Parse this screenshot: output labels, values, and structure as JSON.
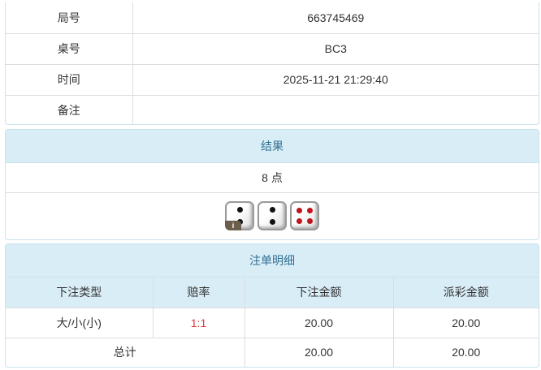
{
  "info": {
    "rows": [
      {
        "label": "局号",
        "value": "663745469"
      },
      {
        "label": "桌号",
        "value": "BC3"
      },
      {
        "label": "时间",
        "value": "2025-11-21 21:29:40"
      },
      {
        "label": "备注",
        "value": ""
      }
    ]
  },
  "result": {
    "title": "结果",
    "points": "8 点",
    "dice": [
      2,
      2,
      4
    ],
    "info_badge": "i"
  },
  "bets": {
    "title": "注单明细",
    "columns": [
      "下注类型",
      "赔率",
      "下注金额",
      "派彩金额"
    ],
    "rows": [
      {
        "type": "大/小(小)",
        "odds": "1:1",
        "amount": "20.00",
        "payout": "20.00"
      }
    ],
    "total": {
      "label": "总计",
      "amount": "20.00",
      "payout": "20.00"
    }
  },
  "colors": {
    "header_bg": "#d9edf7",
    "header_text": "#31708f",
    "odds": "#e4393c"
  }
}
